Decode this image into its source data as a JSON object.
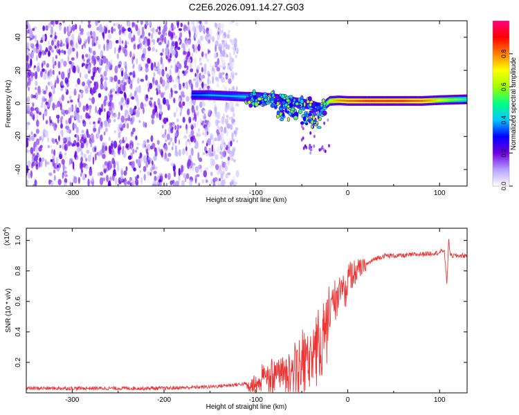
{
  "title": "C2E6.2026.091.14.27.G03",
  "chart_data": [
    {
      "type": "heatmap",
      "xlabel": "Height of straight line (km)",
      "ylabel": "Frequency (Hz)",
      "xlim": [
        -350,
        130
      ],
      "ylim": [
        -50,
        50
      ],
      "xticks": [
        -300,
        -200,
        -100,
        0,
        100
      ],
      "xtick_labels": [
        "-300",
        "-200",
        "-100",
        "0",
        "100"
      ],
      "yticks": [
        -40,
        -20,
        0,
        20,
        40
      ],
      "ytick_labels": [
        "-40",
        "-20",
        "0",
        "20",
        "40"
      ],
      "signal_trace": {
        "heights": [
          -170,
          -150,
          -130,
          -110,
          -100,
          -90,
          -80,
          -70,
          -60,
          -50,
          -40,
          -30,
          -20,
          -10,
          0,
          20,
          40,
          60,
          80,
          100,
          130
        ],
        "frequency_hz": [
          5,
          5,
          4.5,
          4,
          4,
          3.5,
          3,
          2,
          1,
          0,
          -1,
          -3,
          1.5,
          1.8,
          1.5,
          1.5,
          1.5,
          1.5,
          1.5,
          2,
          2.5
        ],
        "amplitude": [
          0.35,
          0.4,
          0.4,
          0.45,
          0.45,
          0.4,
          0.35,
          0.3,
          0.3,
          0.3,
          0.35,
          0.4,
          0.7,
          0.8,
          0.85,
          0.9,
          0.9,
          0.9,
          0.85,
          0.7,
          0.5
        ]
      },
      "noise_region_km": [
        -350,
        -120
      ],
      "colorbar": {
        "label": "Normalized spectral amplitude",
        "range": [
          0,
          1
        ],
        "ticks": [
          0,
          0.2,
          0.4,
          0.6,
          0.8
        ],
        "tick_labels": [
          "0.0",
          "0.2",
          "0.4",
          "0.6",
          "0.8"
        ],
        "colors": [
          "#ffffff",
          "#b4a0ff",
          "#7000e0",
          "#0000ff",
          "#00c8ff",
          "#00ff80",
          "#a0ff00",
          "#ffff00",
          "#ff8000",
          "#ff0000",
          "#ff0080"
        ]
      }
    },
    {
      "type": "line",
      "xlabel": "Height of straight line (km)",
      "ylabel": "SNR (10 * v/v)",
      "multiplier_label": "(x10",
      "multiplier_exponent": "4",
      "multiplier_close": ")",
      "xlim": [
        -350,
        130
      ],
      "ylim": [
        0,
        1.08
      ],
      "xticks": [
        -300,
        -200,
        -100,
        0,
        100
      ],
      "xtick_labels": [
        "-300",
        "-200",
        "-100",
        "0",
        "100"
      ],
      "yticks": [
        0.2,
        0.4,
        0.6,
        0.8,
        1.0
      ],
      "ytick_labels": [
        "0.2",
        "0.4",
        "0.6",
        "0.8",
        "1.0"
      ],
      "series": [
        {
          "name": "SNR",
          "color": "#ee3333",
          "x": [
            -350,
            -300,
            -250,
            -200,
            -150,
            -130,
            -110,
            -100,
            -95,
            -90,
            -80,
            -70,
            -60,
            -50,
            -40,
            -30,
            -25,
            -20,
            -15,
            -10,
            -5,
            0,
            10,
            20,
            30,
            40,
            60,
            80,
            100,
            105,
            108,
            110,
            112,
            120,
            130
          ],
          "y": [
            0.03,
            0.03,
            0.03,
            0.03,
            0.04,
            0.05,
            0.06,
            0.08,
            0.12,
            0.15,
            0.16,
            0.18,
            0.22,
            0.26,
            0.3,
            0.4,
            0.55,
            0.62,
            0.65,
            0.7,
            0.72,
            0.75,
            0.8,
            0.84,
            0.88,
            0.9,
            0.9,
            0.91,
            0.92,
            0.94,
            0.72,
            1.0,
            0.9,
            0.9,
            0.9
          ]
        }
      ]
    }
  ]
}
